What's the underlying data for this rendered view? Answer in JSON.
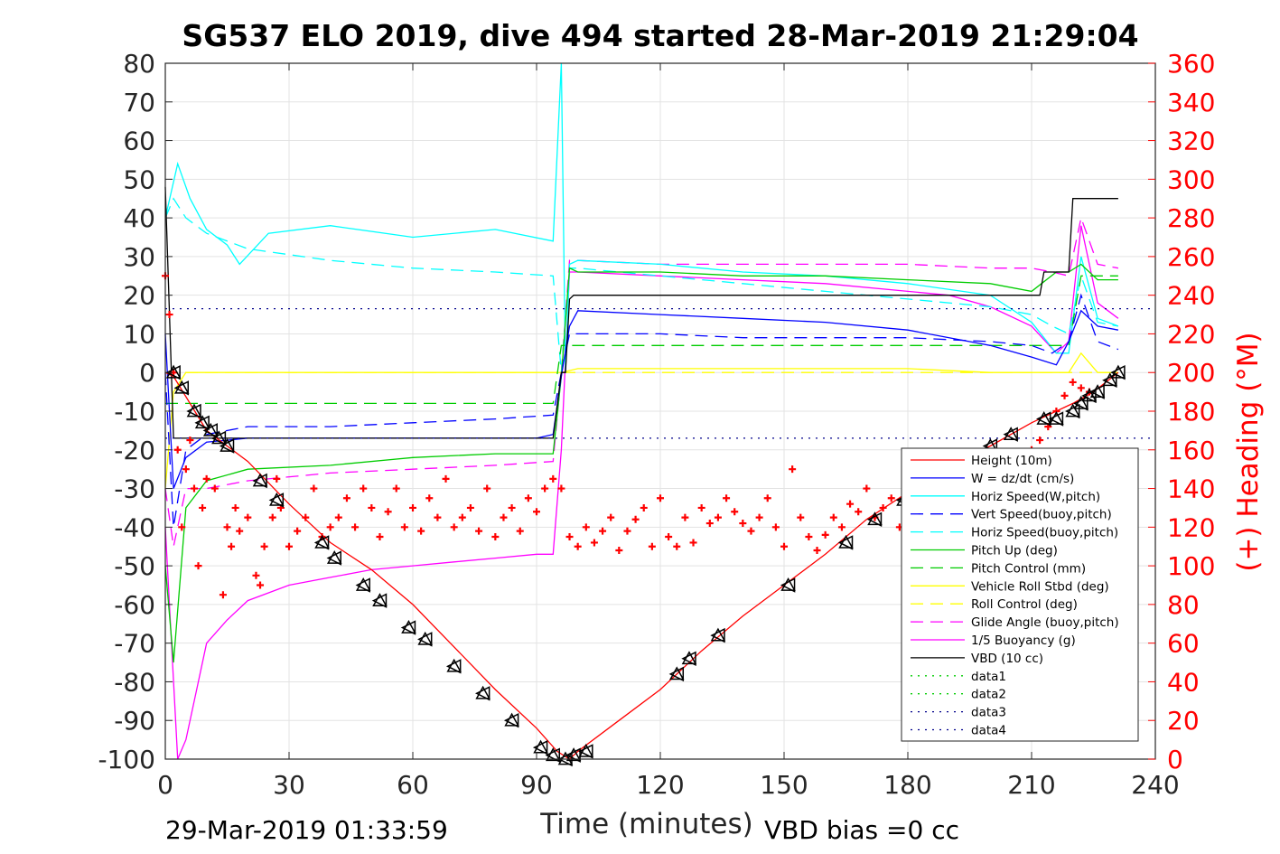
{
  "chart_data": {
    "type": "line",
    "title": "SG537 ELO 2019, dive 494 started 28-Mar-2019 21:29:04",
    "xlabel": "Time (minutes)",
    "ylabel": "",
    "y2label": "(+) Heading (°M)",
    "xlim": [
      0,
      240
    ],
    "ylim": [
      -100,
      80
    ],
    "y2lim": [
      0,
      360
    ],
    "xticks": [
      "0",
      "30",
      "60",
      "90",
      "120",
      "150",
      "180",
      "210",
      "240"
    ],
    "yticks": [
      "-100",
      "-90",
      "-80",
      "-70",
      "-60",
      "-50",
      "-40",
      "-30",
      "-20",
      "-10",
      "0",
      "10",
      "20",
      "30",
      "40",
      "50",
      "60",
      "70",
      "80"
    ],
    "y2ticks": [
      "0",
      "20",
      "40",
      "60",
      "80",
      "100",
      "120",
      "140",
      "160",
      "180",
      "200",
      "220",
      "240",
      "260",
      "280",
      "300",
      "320",
      "340",
      "360"
    ],
    "grid": true,
    "legend_position": "lower-right",
    "footer_left": "29-Mar-2019 01:33:59",
    "footer_right": "VBD bias =0 cc",
    "series": [
      {
        "name": "Height (10m)",
        "color": "#ff0000",
        "style": "solid",
        "x": [
          0,
          2,
          10,
          20,
          30,
          40,
          50,
          60,
          70,
          80,
          90,
          95,
          98,
          100,
          110,
          120,
          130,
          140,
          150,
          160,
          170,
          180,
          190,
          200,
          210,
          220,
          225,
          231
        ],
        "y": [
          0,
          -1,
          -15,
          -23,
          -34,
          -44,
          -51,
          -60,
          -71,
          -82,
          -92,
          -98,
          -100,
          -98,
          -90,
          -82,
          -72,
          -63,
          -55,
          -47,
          -38,
          -31,
          -24,
          -19,
          -13,
          -8,
          -5,
          0
        ]
      },
      {
        "name": "W = dz/dt (cm/s)",
        "color": "#0000ff",
        "style": "solid",
        "x": [
          0,
          2,
          5,
          10,
          20,
          40,
          60,
          80,
          90,
          94,
          96,
          98,
          100,
          120,
          140,
          160,
          180,
          200,
          210,
          216,
          219,
          222,
          226,
          231
        ],
        "y": [
          10,
          -30,
          -22,
          -18,
          -17,
          -17,
          -17,
          -17,
          -17,
          -16,
          -1,
          12,
          16,
          15,
          14,
          13,
          11,
          7,
          4,
          2,
          8,
          16,
          12,
          11
        ]
      },
      {
        "name": "Horiz Speed(W,pitch)",
        "color": "#00ffff",
        "style": "solid",
        "x": [
          0,
          3,
          6,
          10,
          15,
          18,
          25,
          40,
          60,
          80,
          94,
          96,
          97,
          98,
          100,
          120,
          140,
          160,
          180,
          200,
          210,
          216,
          219,
          222,
          226,
          231
        ],
        "y": [
          40,
          54,
          45,
          37,
          33,
          28,
          36,
          38,
          35,
          37,
          34,
          80,
          0,
          28,
          29,
          28,
          26,
          25,
          23,
          20,
          13,
          5,
          5,
          30,
          14,
          12
        ]
      },
      {
        "name": "Vert Speed(buoy,pitch)",
        "color": "#0000ff",
        "style": "dashed",
        "x": [
          0,
          2,
          5,
          10,
          20,
          40,
          60,
          80,
          94,
          96,
          98,
          100,
          120,
          140,
          160,
          180,
          200,
          210,
          215,
          219,
          222,
          226,
          231
        ],
        "y": [
          0,
          -40,
          -20,
          -16,
          -14,
          -14,
          -13,
          -12,
          -11,
          0,
          10,
          10,
          10,
          9,
          9,
          9,
          8,
          7,
          5,
          8,
          20,
          8,
          6
        ]
      },
      {
        "name": "Horiz Speed(buoy,pitch)",
        "color": "#00ffff",
        "style": "dashed",
        "x": [
          0,
          2,
          5,
          10,
          20,
          40,
          60,
          80,
          94,
          96,
          98,
          100,
          120,
          140,
          160,
          180,
          200,
          210,
          215,
          219,
          222,
          226,
          231
        ],
        "y": [
          40,
          45,
          40,
          36,
          32,
          29,
          27,
          26,
          25,
          0,
          27,
          27,
          25,
          23,
          21,
          19,
          17,
          15,
          12,
          10,
          25,
          13,
          12
        ]
      },
      {
        "name": "Pitch Up (deg)",
        "color": "#00cc00",
        "style": "solid",
        "x": [
          0,
          2,
          5,
          10,
          20,
          40,
          60,
          80,
          94,
          96,
          98,
          100,
          120,
          140,
          160,
          180,
          200,
          210,
          216,
          219,
          222,
          226,
          231
        ],
        "y": [
          -50,
          -75,
          -35,
          -28,
          -25,
          -24,
          -22,
          -21,
          -21,
          -1,
          27,
          26,
          26,
          25,
          25,
          24,
          23,
          21,
          26,
          26,
          28,
          24,
          24
        ]
      },
      {
        "name": "Pitch Control (mm)",
        "color": "#00cc00",
        "style": "dashed",
        "x": [
          0,
          5,
          10,
          40,
          60,
          80,
          94,
          96,
          100,
          140,
          180,
          210,
          216,
          219,
          222,
          226,
          231
        ],
        "y": [
          -8,
          -8,
          -8,
          -8,
          -8,
          -8,
          -8,
          7,
          7,
          7,
          7,
          7,
          7,
          7,
          25,
          25,
          25
        ]
      },
      {
        "name": "Vehicle Roll Stbd (deg)",
        "color": "#ffff00",
        "style": "solid",
        "x": [
          0,
          2,
          5,
          10,
          20,
          40,
          60,
          80,
          94,
          96,
          100,
          120,
          140,
          160,
          180,
          200,
          210,
          216,
          219,
          222,
          226,
          231
        ],
        "y": [
          -30,
          -5,
          0,
          0,
          0,
          0,
          0,
          0,
          0,
          0,
          1,
          1,
          1,
          1,
          1,
          0,
          0,
          0,
          0,
          5,
          0,
          0
        ]
      },
      {
        "name": "Roll Control (deg)",
        "color": "#ffff00",
        "style": "dashed",
        "x": [
          0,
          10,
          40,
          80,
          94,
          96,
          120,
          160,
          200,
          210,
          231
        ],
        "y": [
          0,
          0,
          0,
          0,
          0,
          0,
          0,
          0,
          0,
          0,
          0
        ]
      },
      {
        "name": "Glide Angle (buoy,pitch)",
        "color": "#ff00ff",
        "style": "dashed",
        "x": [
          0,
          2,
          5,
          10,
          20,
          40,
          60,
          80,
          94,
          96,
          98,
          100,
          120,
          140,
          160,
          180,
          200,
          210,
          215,
          219,
          222,
          226,
          231
        ],
        "y": [
          -30,
          -45,
          -30,
          -30,
          -28,
          -26,
          -25,
          -24,
          -23,
          0,
          29,
          29,
          28,
          28,
          28,
          28,
          27,
          27,
          26,
          25,
          40,
          28,
          27
        ]
      },
      {
        "name": "1/5 Buoyancy (g)",
        "color": "#ff00ff",
        "style": "solid",
        "x": [
          0,
          3,
          5,
          7,
          10,
          15,
          20,
          30,
          40,
          50,
          60,
          70,
          80,
          90,
          94,
          96,
          98,
          100,
          120,
          140,
          160,
          180,
          190,
          200,
          210,
          216,
          219,
          222,
          226,
          231
        ],
        "y": [
          -40,
          -100,
          -95,
          -85,
          -70,
          -64,
          -59,
          -55,
          -53,
          -51,
          -50,
          -49,
          -48,
          -47,
          -47,
          -20,
          26,
          26,
          25,
          24,
          23,
          21,
          20,
          17,
          12,
          5,
          8,
          38,
          18,
          14
        ]
      },
      {
        "name": "VBD (10 cc)",
        "color": "#000000",
        "style": "solid",
        "x": [
          0,
          2,
          4,
          40,
          94,
          96,
          97,
          98,
          99,
          100,
          160,
          212,
          213,
          219,
          220,
          231
        ],
        "y": [
          48,
          -17,
          -17,
          -17,
          -17,
          0,
          0,
          19,
          20,
          20,
          20,
          20,
          26,
          26,
          45,
          45
        ]
      },
      {
        "name": "data1",
        "color": "#00cc00",
        "style": "dotted",
        "x": [],
        "y": []
      },
      {
        "name": "data2",
        "color": "#00cc00",
        "style": "dotted",
        "x": [],
        "y": []
      },
      {
        "name": "data3",
        "color": "#00008b",
        "style": "dotted",
        "x": [
          0,
          240
        ],
        "y": [
          16.5,
          16.5
        ]
      },
      {
        "name": "data4",
        "color": "#00008b",
        "style": "dotted",
        "x": [
          0,
          240
        ],
        "y": [
          -17,
          -17
        ]
      }
    ],
    "heading": {
      "axis": "right",
      "color": "#ff0000",
      "marker": "+",
      "x": [
        0,
        1,
        2,
        3,
        4,
        5,
        6,
        7,
        8,
        9,
        10,
        12,
        14,
        15,
        16,
        17,
        18,
        20,
        22,
        23,
        24,
        26,
        27,
        28,
        30,
        32,
        34,
        36,
        38,
        40,
        42,
        44,
        46,
        48,
        50,
        52,
        54,
        56,
        58,
        60,
        62,
        64,
        66,
        68,
        70,
        72,
        74,
        76,
        78,
        80,
        82,
        84,
        86,
        88,
        90,
        92,
        94,
        96,
        98,
        100,
        102,
        104,
        106,
        108,
        110,
        112,
        114,
        116,
        118,
        120,
        122,
        124,
        126,
        128,
        130,
        132,
        134,
        136,
        138,
        140,
        142,
        144,
        146,
        148,
        150,
        152,
        154,
        156,
        158,
        160,
        162,
        164,
        166,
        168,
        170,
        172,
        174,
        176,
        178,
        180,
        182,
        184,
        186,
        188,
        190,
        192,
        194,
        196,
        198,
        200,
        202,
        204,
        206,
        208,
        210,
        212,
        214,
        216,
        218,
        220,
        222,
        224
      ],
      "y": [
        250,
        230,
        200,
        160,
        120,
        150,
        165,
        140,
        100,
        130,
        145,
        140,
        85,
        120,
        110,
        130,
        118,
        125,
        95,
        90,
        110,
        125,
        145,
        130,
        110,
        118,
        125,
        140,
        115,
        120,
        125,
        135,
        120,
        140,
        130,
        115,
        128,
        140,
        120,
        130,
        118,
        135,
        125,
        145,
        120,
        125,
        130,
        118,
        140,
        115,
        125,
        130,
        118,
        135,
        128,
        140,
        145,
        140,
        115,
        110,
        120,
        112,
        118,
        125,
        108,
        118,
        124,
        130,
        110,
        135,
        115,
        110,
        125,
        112,
        130,
        122,
        125,
        135,
        128,
        122,
        118,
        125,
        135,
        120,
        110,
        150,
        125,
        115,
        108,
        116,
        125,
        120,
        132,
        128,
        140,
        125,
        130,
        135,
        120,
        130,
        142,
        118,
        132,
        148,
        125,
        135,
        120,
        145,
        130,
        142,
        128,
        150,
        135,
        155,
        160,
        165,
        172,
        180,
        188,
        195,
        192,
        190
      ]
    },
    "depth_markers": {
      "color": "#000000",
      "shape": "triangle",
      "x": [
        2,
        4,
        7,
        9,
        11,
        13,
        15,
        23,
        27,
        38,
        41,
        48,
        52,
        59,
        63,
        70,
        77,
        84,
        91,
        94,
        97,
        99,
        102,
        124,
        127,
        134,
        151,
        165,
        172,
        179,
        186,
        193,
        200,
        205,
        213,
        216,
        220,
        222,
        224,
        226,
        229,
        231
      ],
      "y": [
        0,
        -4,
        -10,
        -13,
        -15,
        -17,
        -19,
        -28,
        -33,
        -44,
        -48,
        -55,
        -59,
        -66,
        -69,
        -76,
        -83,
        -90,
        -97,
        -99,
        -100,
        -99,
        -98,
        -78,
        -74,
        -68,
        -55,
        -44,
        -38,
        -33,
        -27,
        -22,
        -19,
        -16,
        -12,
        -12,
        -10,
        -8,
        -6,
        -5,
        -2,
        0
      ]
    }
  }
}
